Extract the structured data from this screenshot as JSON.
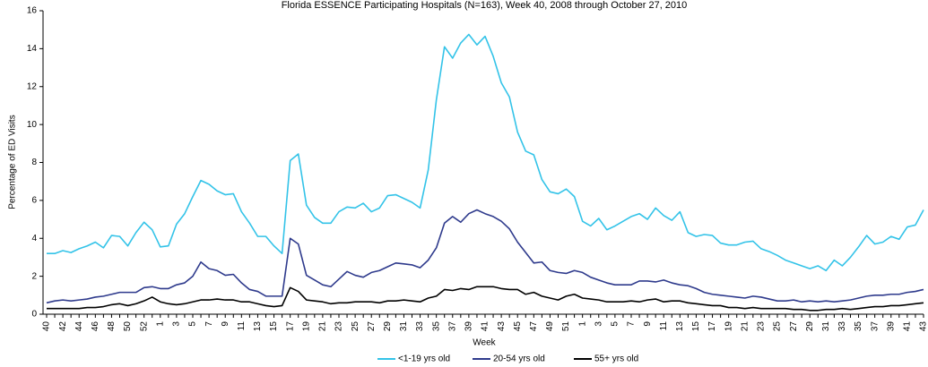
{
  "chart_data": {
    "type": "line",
    "title": "Florida ESSENCE Participating Hospitals (N=163), Week 40, 2008 through October 27, 2010",
    "x_label": "Week",
    "y_label": "Percentage of ED Visits",
    "categories": [
      "40",
      null,
      "42",
      null,
      "44",
      null,
      "46",
      null,
      "48",
      null,
      "50",
      null,
      "52",
      null,
      "1",
      null,
      "3",
      null,
      "5",
      null,
      "7",
      null,
      "9",
      null,
      "11",
      null,
      "13",
      null,
      "15",
      null,
      "17",
      null,
      "19",
      null,
      "21",
      null,
      "23",
      null,
      "25",
      null,
      "27",
      null,
      "29",
      null,
      "31",
      null,
      "33",
      null,
      "35",
      null,
      "37",
      null,
      "39",
      null,
      "41",
      null,
      "43",
      null,
      "45",
      null,
      "47",
      null,
      "49",
      null,
      "51",
      null,
      "1",
      null,
      "3",
      null,
      "5",
      null,
      "7",
      null,
      "9",
      null,
      "11",
      null,
      "13",
      null,
      "15",
      null,
      "17",
      null,
      "19",
      null,
      "21",
      null,
      "23",
      null,
      "25",
      null,
      "27",
      null,
      "29",
      null,
      "31",
      null,
      "33",
      null,
      "35",
      null,
      "37",
      null,
      "39",
      null,
      "41",
      null,
      "43"
    ],
    "ylim": [
      0,
      16
    ],
    "yticks": [
      0,
      2,
      4,
      6,
      8,
      10,
      12,
      14,
      16
    ],
    "series": [
      {
        "name": "<1-19 yrs old",
        "color": "#33c3e8",
        "values": [
          3.2,
          3.2,
          3.35,
          3.25,
          3.45,
          3.6,
          3.8,
          3.5,
          4.15,
          4.1,
          3.6,
          4.3,
          4.85,
          4.45,
          3.55,
          3.6,
          4.75,
          5.3,
          6.2,
          7.05,
          6.85,
          6.5,
          6.3,
          6.35,
          5.4,
          4.8,
          4.1,
          4.1,
          3.6,
          3.2,
          8.1,
          8.45,
          5.75,
          5.1,
          4.8,
          4.8,
          5.4,
          5.65,
          5.6,
          5.85,
          5.4,
          5.6,
          6.25,
          6.3,
          6.1,
          5.9,
          5.6,
          7.6,
          11.3,
          14.1,
          13.5,
          14.3,
          14.75,
          14.2,
          14.65,
          13.6,
          12.2,
          11.45,
          9.6,
          8.6,
          8.4,
          7.1,
          6.45,
          6.35,
          6.6,
          6.2,
          4.9,
          4.65,
          5.05,
          4.45,
          4.65,
          4.9,
          5.15,
          5.3,
          5.0,
          5.6,
          5.2,
          4.95,
          5.4,
          4.3,
          4.1,
          4.2,
          4.15,
          3.75,
          3.65,
          3.65,
          3.8,
          3.85,
          3.45,
          3.3,
          3.1,
          2.85,
          2.7,
          2.55,
          2.4,
          2.55,
          2.3,
          2.85,
          2.55,
          3.0,
          3.55,
          4.15,
          3.7,
          3.8,
          4.1,
          3.95,
          4.6,
          4.7,
          5.5
        ]
      },
      {
        "name": "20-54 yrs old",
        "color": "#2e3a8c",
        "values": [
          0.6,
          0.7,
          0.75,
          0.7,
          0.75,
          0.8,
          0.9,
          0.95,
          1.05,
          1.15,
          1.15,
          1.15,
          1.4,
          1.45,
          1.35,
          1.35,
          1.55,
          1.65,
          2.0,
          2.75,
          2.4,
          2.3,
          2.05,
          2.1,
          1.65,
          1.3,
          1.2,
          0.95,
          0.95,
          0.95,
          4.0,
          3.7,
          2.05,
          1.8,
          1.55,
          1.45,
          1.85,
          2.25,
          2.05,
          1.95,
          2.2,
          2.3,
          2.5,
          2.7,
          2.65,
          2.6,
          2.45,
          2.85,
          3.5,
          4.8,
          5.15,
          4.85,
          5.3,
          5.5,
          5.3,
          5.15,
          4.9,
          4.5,
          3.8,
          3.25,
          2.7,
          2.75,
          2.3,
          2.2,
          2.15,
          2.3,
          2.2,
          1.95,
          1.8,
          1.65,
          1.55,
          1.55,
          1.55,
          1.75,
          1.75,
          1.7,
          1.8,
          1.65,
          1.55,
          1.5,
          1.35,
          1.15,
          1.05,
          1.0,
          0.95,
          0.9,
          0.85,
          0.95,
          0.9,
          0.8,
          0.7,
          0.7,
          0.75,
          0.65,
          0.7,
          0.65,
          0.7,
          0.65,
          0.7,
          0.75,
          0.85,
          0.95,
          1.0,
          1.0,
          1.05,
          1.05,
          1.15,
          1.2,
          1.3
        ]
      },
      {
        "name": "55+ yrs old",
        "color": "#000000",
        "values": [
          0.3,
          0.3,
          0.3,
          0.3,
          0.3,
          0.35,
          0.35,
          0.4,
          0.5,
          0.55,
          0.45,
          0.55,
          0.7,
          0.9,
          0.65,
          0.55,
          0.5,
          0.55,
          0.65,
          0.75,
          0.75,
          0.8,
          0.75,
          0.75,
          0.65,
          0.65,
          0.55,
          0.45,
          0.4,
          0.45,
          1.4,
          1.2,
          0.75,
          0.7,
          0.65,
          0.55,
          0.6,
          0.6,
          0.65,
          0.65,
          0.65,
          0.6,
          0.7,
          0.7,
          0.75,
          0.7,
          0.65,
          0.85,
          0.95,
          1.3,
          1.25,
          1.35,
          1.3,
          1.45,
          1.45,
          1.45,
          1.35,
          1.3,
          1.3,
          1.05,
          1.15,
          0.95,
          0.85,
          0.75,
          0.95,
          1.05,
          0.85,
          0.8,
          0.75,
          0.65,
          0.65,
          0.65,
          0.7,
          0.65,
          0.75,
          0.8,
          0.65,
          0.7,
          0.7,
          0.6,
          0.55,
          0.5,
          0.45,
          0.45,
          0.35,
          0.35,
          0.3,
          0.35,
          0.3,
          0.3,
          0.3,
          0.3,
          0.25,
          0.25,
          0.2,
          0.2,
          0.25,
          0.25,
          0.3,
          0.25,
          0.3,
          0.35,
          0.4,
          0.4,
          0.45,
          0.45,
          0.5,
          0.55,
          0.6
        ]
      }
    ]
  }
}
